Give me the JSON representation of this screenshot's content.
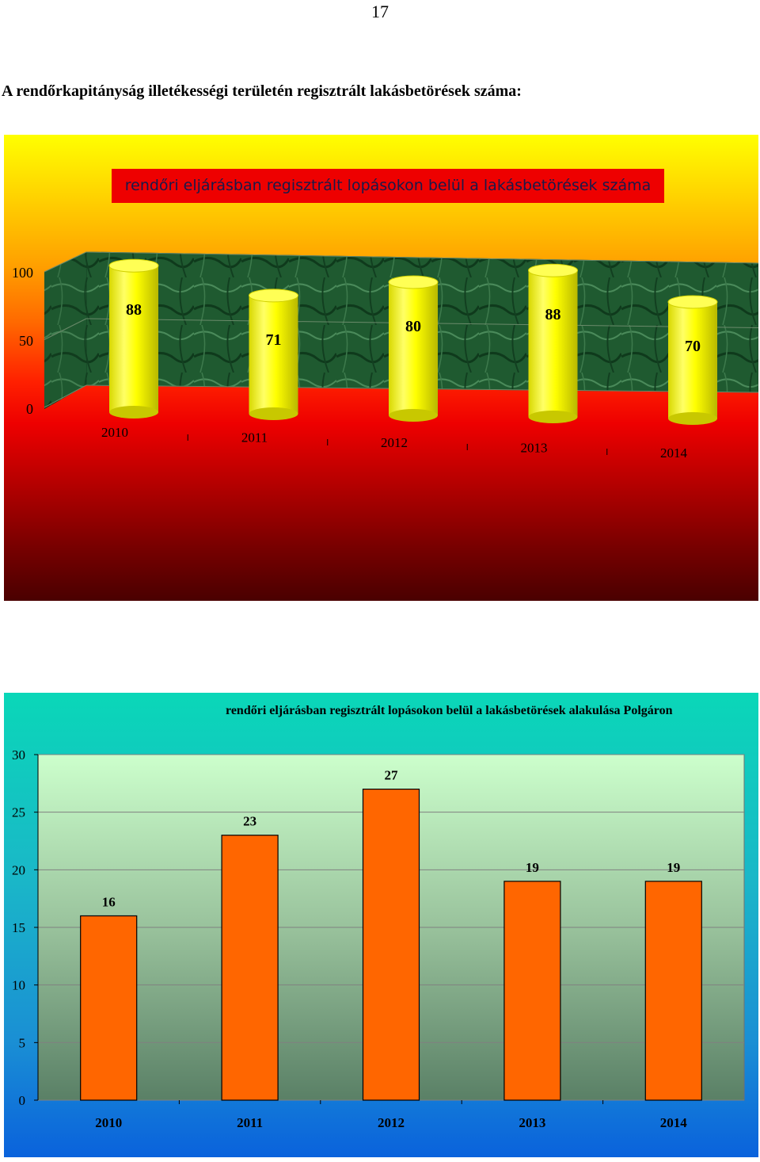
{
  "page": {
    "number": "17",
    "heading": "A rendőrkapitányság illetékességi területén regisztrált lakásbetörések száma:"
  },
  "chart_data": [
    {
      "type": "bar",
      "style": "3d-cylinder",
      "title": "rendőri eljárásban regisztrált lopásokon belül a lakásbetörések száma",
      "categories": [
        "2010",
        "2011",
        "2012",
        "2013",
        "2014"
      ],
      "values": [
        88,
        71,
        80,
        88,
        70
      ],
      "data_labels": [
        "88",
        "71",
        "80",
        "88",
        "70"
      ],
      "yticks": [
        "0",
        "50",
        "100"
      ],
      "ylim": [
        0,
        100
      ],
      "grid": true,
      "legend": "none",
      "colors": {
        "bar": "#ffff00",
        "wall": "#1f5a30",
        "title_bg": "#ee0000"
      }
    },
    {
      "type": "bar",
      "title": "rendőri eljárásban regisztrált lopásokon belül a lakásbetörések alakulása Polgáron",
      "categories": [
        "2010",
        "2011",
        "2012",
        "2013",
        "2014"
      ],
      "values": [
        16,
        23,
        27,
        19,
        19
      ],
      "data_labels": [
        "16",
        "23",
        "27",
        "19",
        "19"
      ],
      "yticks": [
        "0",
        "5",
        "10",
        "15",
        "20",
        "25",
        "30"
      ],
      "ylim": [
        0,
        30
      ],
      "grid": true,
      "legend": "none",
      "colors": {
        "bar": "#ff6600",
        "plot_top": "#ccffcc",
        "plot_bottom": "#5a8066"
      }
    }
  ]
}
